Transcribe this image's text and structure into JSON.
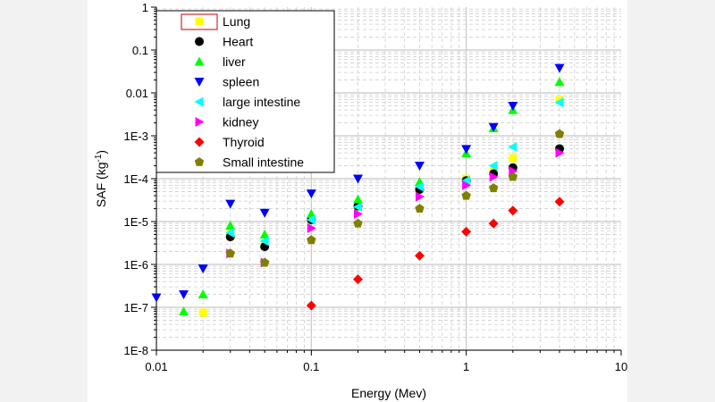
{
  "chart_data": {
    "type": "scatter",
    "xlabel": "Energy (Mev)",
    "ylabel": "SAF (kg",
    "ylabel_unit_sup": "-1",
    "ylabel_close": ")",
    "x_scale": "log",
    "y_scale": "log",
    "xlim": [
      0.01,
      10
    ],
    "ylim": [
      1e-08,
      1
    ],
    "x_ticks": [
      {
        "v": 0.01,
        "label": "0.01"
      },
      {
        "v": 0.1,
        "label": "0.1"
      },
      {
        "v": 1,
        "label": "1"
      },
      {
        "v": 10,
        "label": "10"
      }
    ],
    "y_ticks": [
      {
        "v": 1,
        "label": "1"
      },
      {
        "v": 0.1,
        "label": "0.1"
      },
      {
        "v": 0.01,
        "label": "0.01"
      },
      {
        "v": 0.001,
        "label": "1E-3"
      },
      {
        "v": 0.0001,
        "label": "1E-4"
      },
      {
        "v": 1e-05,
        "label": "1E-5"
      },
      {
        "v": 1e-06,
        "label": "1E-6"
      },
      {
        "v": 1e-07,
        "label": "1E-7"
      },
      {
        "v": 1e-08,
        "label": "1E-8"
      }
    ],
    "grid": true,
    "legend_position": "top-left",
    "series": [
      {
        "name": "Lung",
        "color": "#ffff00",
        "marker": "square",
        "x": [
          0.02,
          0.03,
          0.05,
          0.1,
          0.2,
          0.5,
          1,
          1.5,
          2,
          4
        ],
        "y": [
          7.5e-08,
          5e-06,
          3e-06,
          1.1e-05,
          2.2e-05,
          6e-05,
          0.0001,
          0.00015,
          0.0003,
          0.0068
        ]
      },
      {
        "name": "Heart",
        "color": "#000000",
        "marker": "circle",
        "x": [
          0.03,
          0.05,
          0.1,
          0.2,
          0.5,
          1,
          1.5,
          2,
          4
        ],
        "y": [
          4.4e-06,
          2.6e-06,
          1.1e-05,
          2.3e-05,
          5.6e-05,
          9e-05,
          0.00013,
          0.00018,
          0.0005
        ]
      },
      {
        "name": "liver",
        "color": "#00ff00",
        "marker": "triangle-up",
        "x": [
          0.015,
          0.02,
          0.03,
          0.05,
          0.1,
          0.2,
          0.5,
          1,
          1.5,
          2,
          4
        ],
        "y": [
          8e-08,
          2e-07,
          8e-06,
          5e-06,
          1.5e-05,
          3.3e-05,
          8.4e-05,
          0.00039,
          0.0015,
          0.004,
          0.018
        ]
      },
      {
        "name": "spleen",
        "color": "#0000ff",
        "marker": "triangle-down",
        "x": [
          0.01,
          0.015,
          0.02,
          0.03,
          0.05,
          0.1,
          0.2,
          0.5,
          1,
          1.5,
          2,
          4
        ],
        "y": [
          1.7e-07,
          2e-07,
          8e-07,
          2.6e-05,
          1.6e-05,
          4.5e-05,
          0.0001,
          0.0002,
          0.00049,
          0.0016,
          0.005,
          0.038
        ]
      },
      {
        "name": "large intestine",
        "color": "#00ffff",
        "marker": "triangle-left",
        "x": [
          0.03,
          0.05,
          0.1,
          0.2,
          0.5,
          1,
          1.5,
          2,
          4
        ],
        "y": [
          5.5e-06,
          3.5e-06,
          1.1e-05,
          2.2e-05,
          6.5e-05,
          9e-05,
          0.0002,
          0.00055,
          0.006
        ]
      },
      {
        "name": "kidney",
        "color": "#ff00ff",
        "marker": "triangle-right",
        "x": [
          0.03,
          0.05,
          0.1,
          0.2,
          0.5,
          1,
          1.5,
          2,
          4
        ],
        "y": [
          1.8e-06,
          1.1e-06,
          7e-06,
          1.5e-05,
          3.8e-05,
          7e-05,
          0.00011,
          0.00015,
          0.0004
        ]
      },
      {
        "name": "Thyroid",
        "color": "#ff0000",
        "marker": "diamond",
        "x": [
          0.1,
          0.2,
          0.5,
          1,
          1.5,
          2,
          4
        ],
        "y": [
          1.1e-07,
          4.5e-07,
          1.6e-06,
          5.8e-06,
          9e-06,
          1.8e-05,
          2.9e-05
        ]
      },
      {
        "name": "Small  intestine",
        "color": "#808000",
        "marker": "pentagon",
        "x": [
          0.03,
          0.05,
          0.1,
          0.2,
          0.5,
          1,
          1.5,
          2,
          4
        ],
        "y": [
          1.8e-06,
          1.1e-06,
          3.7e-06,
          9e-06,
          2e-05,
          4e-05,
          6e-05,
          0.00011,
          0.0011
        ]
      }
    ]
  }
}
